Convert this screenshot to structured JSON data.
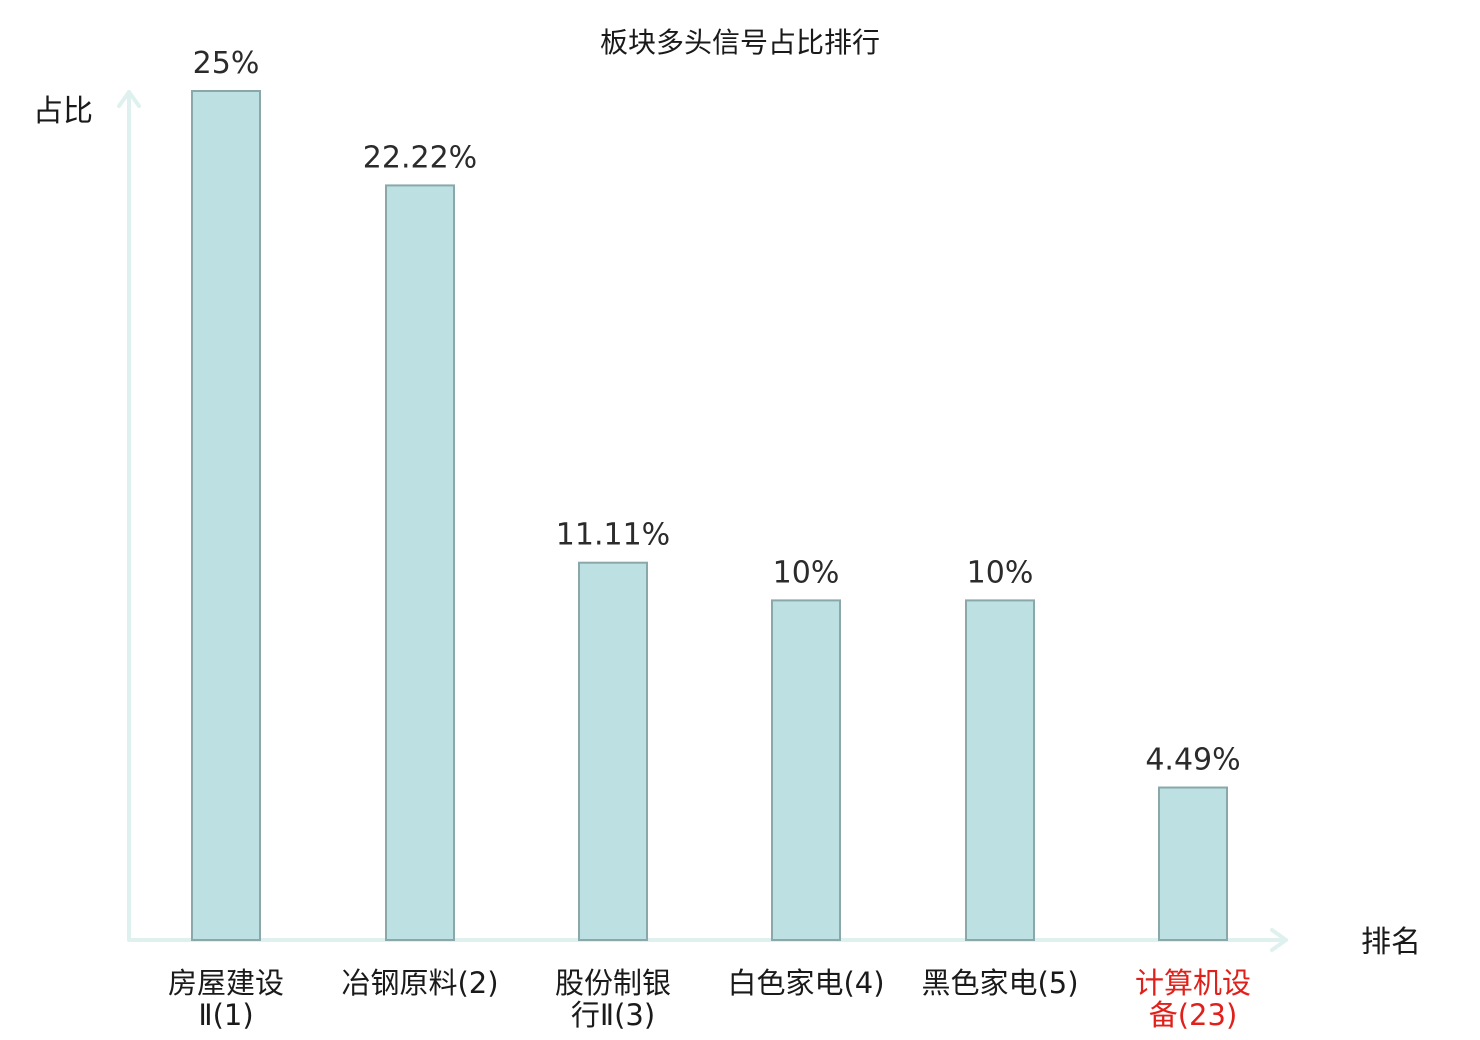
{
  "chart_data": {
    "type": "bar",
    "title": "板块多头信号占比排行",
    "xlabel": "排名",
    "ylabel": "占比",
    "categories": [
      [
        "房屋建设",
        "Ⅱ(1)"
      ],
      [
        "冶钢原料(2)"
      ],
      [
        "股份制银",
        "行Ⅱ(3)"
      ],
      [
        "白色家电(4)"
      ],
      [
        "黑色家电(5)"
      ],
      [
        "计算机设",
        "备(23)"
      ]
    ],
    "values": [
      25,
      22.22,
      11.11,
      10,
      10,
      4.49
    ],
    "value_labels": [
      "25%",
      "22.22%",
      "11.11%",
      "10%",
      "10%",
      "4.49%"
    ],
    "highlight_index": 5,
    "colors": {
      "bar_fill": "#bde0e3",
      "bar_stroke": "#8aa8aa",
      "axis": "#dff1ef",
      "highlight_text": "#e0201a"
    },
    "ylim": [
      0,
      25
    ],
    "grid": false
  }
}
